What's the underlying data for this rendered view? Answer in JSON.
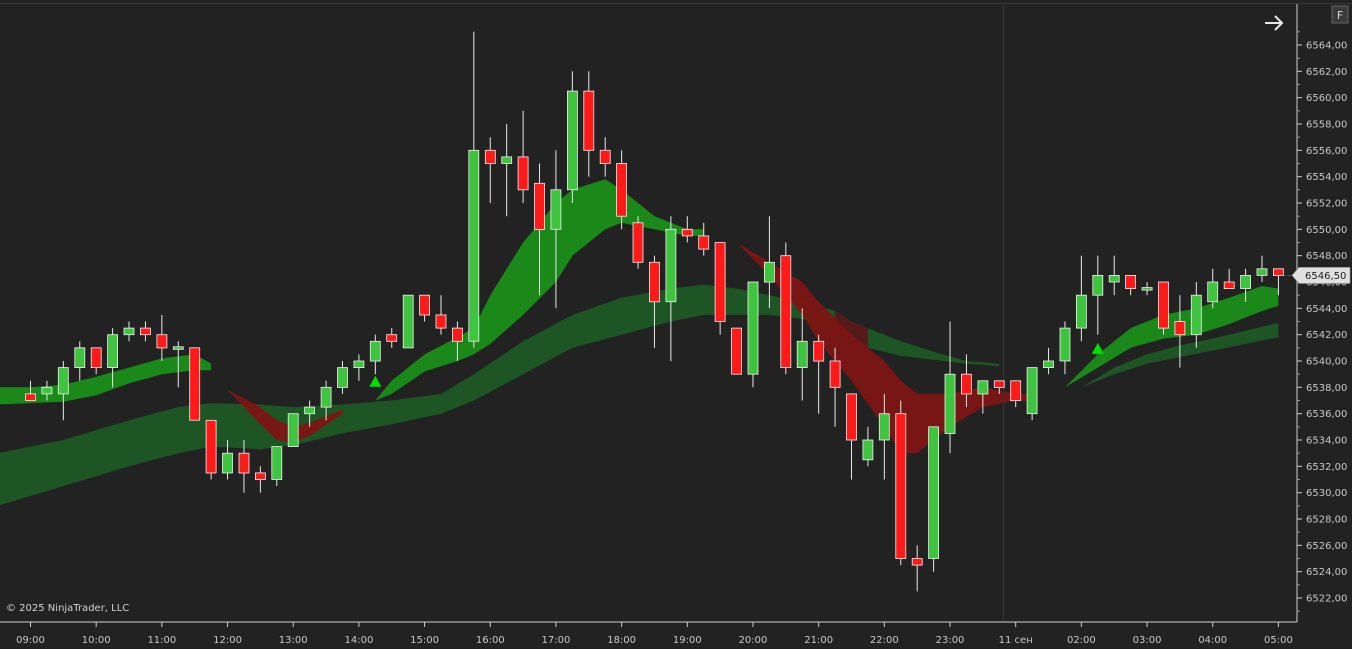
{
  "chart_data": {
    "type": "candlestick",
    "instrument_price_axis": {
      "ylim": [
        6520.5,
        6567
      ],
      "tick_values": [
        6522,
        6524,
        6526,
        6528,
        6530,
        6532,
        6534,
        6536,
        6538,
        6540,
        6542,
        6544,
        6546,
        6548,
        6550,
        6552,
        6554,
        6556,
        6558,
        6560,
        6562,
        6564
      ],
      "tick_labels": [
        "6522,00",
        "6524,00",
        "6526,00",
        "6528,00",
        "6530,00",
        "6532,00",
        "6534,00",
        "6536,00",
        "6538,00",
        "6540,00",
        "6542,00",
        "6544,00",
        "6546,00",
        "6548,00",
        "6550,00",
        "6552,00",
        "6554,00",
        "6556,00",
        "6558,00",
        "6560,00",
        "6562,00",
        "6564,00"
      ]
    },
    "time_axis": {
      "tick_labels": [
        "09:00",
        "10:00",
        "11:00",
        "12:00",
        "13:00",
        "14:00",
        "15:00",
        "16:00",
        "17:00",
        "18:00",
        "19:00",
        "20:00",
        "21:00",
        "22:00",
        "23:00",
        "11 сен",
        "02:00",
        "03:00",
        "04:00",
        "05:00"
      ],
      "tick_bar_index": [
        0,
        4,
        8,
        12,
        16,
        20,
        24,
        28,
        32,
        36,
        40,
        44,
        48,
        52,
        56,
        60,
        64,
        68,
        72,
        76
      ],
      "session_break_index": 60
    },
    "last_price_label": "6546,50",
    "last_price": 6546.5,
    "candles": [
      {
        "o": 6537.5,
        "h": 6538.5,
        "l": 6537,
        "c": 6537
      },
      {
        "o": 6537.5,
        "h": 6538.5,
        "l": 6537,
        "c": 6538
      },
      {
        "o": 6537.5,
        "h": 6540,
        "l": 6535.5,
        "c": 6539.5
      },
      {
        "o": 6539.5,
        "h": 6541.5,
        "l": 6538.5,
        "c": 6541
      },
      {
        "o": 6541,
        "h": 6541,
        "l": 6539,
        "c": 6539.5
      },
      {
        "o": 6539.5,
        "h": 6542.5,
        "l": 6538,
        "c": 6542
      },
      {
        "o": 6542,
        "h": 6543,
        "l": 6541.5,
        "c": 6542.5
      },
      {
        "o": 6542.5,
        "h": 6543,
        "l": 6541.5,
        "c": 6542
      },
      {
        "o": 6542,
        "h": 6543.5,
        "l": 6540,
        "c": 6541
      },
      {
        "o": 6541,
        "h": 6541.5,
        "l": 6538,
        "c": 6541
      },
      {
        "o": 6541,
        "h": 6541,
        "l": 6535.5,
        "c": 6535.5
      },
      {
        "o": 6535.5,
        "h": 6535.5,
        "l": 6531,
        "c": 6531.5
      },
      {
        "o": 6531.5,
        "h": 6534,
        "l": 6531,
        "c": 6533
      },
      {
        "o": 6533,
        "h": 6534,
        "l": 6530,
        "c": 6531.5
      },
      {
        "o": 6531.5,
        "h": 6532,
        "l": 6530,
        "c": 6531
      },
      {
        "o": 6531,
        "h": 6533.5,
        "l": 6530.5,
        "c": 6533.5
      },
      {
        "o": 6533.5,
        "h": 6536,
        "l": 6533.5,
        "c": 6536
      },
      {
        "o": 6536,
        "h": 6537,
        "l": 6535,
        "c": 6536.5
      },
      {
        "o": 6536.5,
        "h": 6538.5,
        "l": 6535.5,
        "c": 6538
      },
      {
        "o": 6538,
        "h": 6540,
        "l": 6537.5,
        "c": 6539.5
      },
      {
        "o": 6539.5,
        "h": 6540.5,
        "l": 6538.5,
        "c": 6540
      },
      {
        "o": 6540,
        "h": 6542,
        "l": 6539,
        "c": 6541.5
      },
      {
        "o": 6542,
        "h": 6542.5,
        "l": 6541,
        "c": 6541.5
      },
      {
        "o": 6541,
        "h": 6545,
        "l": 6541,
        "c": 6545
      },
      {
        "o": 6545,
        "h": 6545,
        "l": 6543,
        "c": 6543.5
      },
      {
        "o": 6543.5,
        "h": 6545,
        "l": 6542,
        "c": 6542.5
      },
      {
        "o": 6542.5,
        "h": 6543,
        "l": 6540,
        "c": 6541.5
      },
      {
        "o": 6541.5,
        "h": 6565,
        "l": 6541,
        "c": 6556
      },
      {
        "o": 6556,
        "h": 6557,
        "l": 6552,
        "c": 6555
      },
      {
        "o": 6555,
        "h": 6558,
        "l": 6551,
        "c": 6555.5
      },
      {
        "o": 6555.5,
        "h": 6559,
        "l": 6552,
        "c": 6553
      },
      {
        "o": 6553.5,
        "h": 6555,
        "l": 6545,
        "c": 6550
      },
      {
        "o": 6550,
        "h": 6556,
        "l": 6544,
        "c": 6553
      },
      {
        "o": 6553,
        "h": 6562,
        "l": 6552,
        "c": 6560.5
      },
      {
        "o": 6560.5,
        "h": 6562,
        "l": 6554,
        "c": 6556
      },
      {
        "o": 6556,
        "h": 6557,
        "l": 6554,
        "c": 6555
      },
      {
        "o": 6555,
        "h": 6556,
        "l": 6550,
        "c": 6551
      },
      {
        "o": 6550.5,
        "h": 6551,
        "l": 6547,
        "c": 6547.5
      },
      {
        "o": 6547.5,
        "h": 6548,
        "l": 6541,
        "c": 6544.5
      },
      {
        "o": 6544.5,
        "h": 6551,
        "l": 6540,
        "c": 6550
      },
      {
        "o": 6550,
        "h": 6551,
        "l": 6549,
        "c": 6549.5
      },
      {
        "o": 6549.5,
        "h": 6550.5,
        "l": 6548,
        "c": 6548.5
      },
      {
        "o": 6549,
        "h": 6549,
        "l": 6542,
        "c": 6543
      },
      {
        "o": 6542.5,
        "h": 6542.5,
        "l": 6539,
        "c": 6539
      },
      {
        "o": 6539,
        "h": 6546,
        "l": 6538,
        "c": 6546
      },
      {
        "o": 6546,
        "h": 6551,
        "l": 6544,
        "c": 6547.5
      },
      {
        "o": 6548,
        "h": 6549,
        "l": 6539,
        "c": 6539.5
      },
      {
        "o": 6539.5,
        "h": 6544,
        "l": 6537,
        "c": 6541.5
      },
      {
        "o": 6541.5,
        "h": 6542,
        "l": 6536,
        "c": 6540
      },
      {
        "o": 6540,
        "h": 6541,
        "l": 6535,
        "c": 6538
      },
      {
        "o": 6537.5,
        "h": 6537.5,
        "l": 6531,
        "c": 6534
      },
      {
        "o": 6532.5,
        "h": 6535,
        "l": 6532,
        "c": 6534
      },
      {
        "o": 6534,
        "h": 6537.5,
        "l": 6531,
        "c": 6536
      },
      {
        "o": 6536,
        "h": 6537,
        "l": 6524.5,
        "c": 6525
      },
      {
        "o": 6525,
        "h": 6526,
        "l": 6522.5,
        "c": 6524.5
      },
      {
        "o": 6525,
        "h": 6535,
        "l": 6524,
        "c": 6535
      },
      {
        "o": 6534.5,
        "h": 6543,
        "l": 6533,
        "c": 6539
      },
      {
        "o": 6539,
        "h": 6540.5,
        "l": 6536.5,
        "c": 6537.5
      },
      {
        "o": 6537.5,
        "h": 6538.5,
        "l": 6536,
        "c": 6538.5
      },
      {
        "o": 6538.5,
        "h": 6538.5,
        "l": 6537.5,
        "c": 6538
      },
      {
        "o": 6538.5,
        "h": 6538.5,
        "l": 6536.5,
        "c": 6537
      },
      {
        "o": 6536,
        "h": 6539.5,
        "l": 6535.5,
        "c": 6539.5
      },
      {
        "o": 6539.5,
        "h": 6541,
        "l": 6539,
        "c": 6540
      },
      {
        "o": 6540,
        "h": 6543,
        "l": 6539,
        "c": 6542.5
      },
      {
        "o": 6542.5,
        "h": 6548,
        "l": 6541.5,
        "c": 6545
      },
      {
        "o": 6545,
        "h": 6548,
        "l": 6542,
        "c": 6546.5
      },
      {
        "o": 6546,
        "h": 6548,
        "l": 6545,
        "c": 6546.5
      },
      {
        "o": 6546.5,
        "h": 6546.5,
        "l": 6545,
        "c": 6545.5
      },
      {
        "o": 6545.5,
        "h": 6546,
        "l": 6545,
        "c": 6545.5
      },
      {
        "o": 6546,
        "h": 6546,
        "l": 6542,
        "c": 6542.5
      },
      {
        "o": 6543,
        "h": 6545,
        "l": 6539.5,
        "c": 6542
      },
      {
        "o": 6542,
        "h": 6546,
        "l": 6541,
        "c": 6545
      },
      {
        "o": 6544.5,
        "h": 6547,
        "l": 6544,
        "c": 6546
      },
      {
        "o": 6546,
        "h": 6547,
        "l": 6545.5,
        "c": 6545.5
      },
      {
        "o": 6545.5,
        "h": 6547,
        "l": 6544.5,
        "c": 6546.5
      },
      {
        "o": 6546.5,
        "h": 6548,
        "l": 6546,
        "c": 6547
      },
      {
        "o": 6547,
        "h": 6547,
        "l": 6545,
        "c": 6546.5
      }
    ],
    "signals": [
      {
        "type": "buy-arrow",
        "bar": 21,
        "price": 6538.5
      },
      {
        "type": "buy-arrow",
        "bar": 65,
        "price": 6541
      }
    ],
    "fast_band": {
      "segments": [
        {
          "color": "green",
          "points": [
            [
              -2,
              6538,
              6536.7
            ],
            [
              0,
              6538,
              6536.8
            ],
            [
              2,
              6538.2,
              6536.9
            ],
            [
              4,
              6538.8,
              6537.4
            ],
            [
              6,
              6539.5,
              6538.3
            ],
            [
              8,
              6540.2,
              6539
            ],
            [
              10,
              6540.5,
              6539.3
            ],
            [
              11,
              6539.8,
              6539.3
            ]
          ]
        },
        {
          "color": "red",
          "points": [
            [
              12,
              6537.8,
              6537.8
            ],
            [
              14,
              6536.5,
              6535.2
            ],
            [
              15,
              6535.5,
              6534
            ],
            [
              16,
              6535,
              6533.8
            ],
            [
              17,
              6535.3,
              6534.3
            ],
            [
              19,
              6536.3,
              6536
            ]
          ]
        },
        {
          "color": "green",
          "points": [
            [
              21,
              6537,
              6537
            ],
            [
              22,
              6538.5,
              6537.5
            ],
            [
              24,
              6540.5,
              6539.2
            ],
            [
              26,
              6541.8,
              6540
            ],
            [
              27,
              6542.5,
              6540.5
            ],
            [
              28,
              6545,
              6541.3
            ],
            [
              30,
              6549,
              6543.5
            ],
            [
              32,
              6552,
              6546
            ],
            [
              33,
              6553,
              6548
            ],
            [
              35,
              6553.8,
              6550
            ],
            [
              36,
              6553,
              6550.5
            ],
            [
              38,
              6551,
              6550
            ],
            [
              40,
              6550,
              6549.5
            ],
            [
              41,
              6550,
              6549.5
            ]
          ]
        },
        {
          "color": "red",
          "points": [
            [
              43,
              6549,
              6549
            ],
            [
              45,
              6547.5,
              6546.5
            ],
            [
              47,
              6546,
              6543.5
            ],
            [
              48,
              6544.5,
              6541.5
            ],
            [
              50,
              6542,
              6538.5
            ],
            [
              52,
              6540,
              6535
            ],
            [
              53,
              6538.5,
              6533
            ],
            [
              54,
              6537.5,
              6533
            ],
            [
              56,
              6537.5,
              6535
            ],
            [
              58,
              6538,
              6536.5
            ],
            [
              60,
              6537.5,
              6537
            ],
            [
              61,
              6537.5,
              6537
            ]
          ]
        },
        {
          "color": "green",
          "points": [
            [
              63,
              6538,
              6538
            ],
            [
              65,
              6540.5,
              6539.5
            ],
            [
              67,
              6542.5,
              6541
            ],
            [
              69,
              6543.5,
              6541.7
            ],
            [
              71,
              6544,
              6542
            ],
            [
              73,
              6544.8,
              6542.8
            ],
            [
              75,
              6545.7,
              6543.8
            ],
            [
              76,
              6545.5,
              6544.2
            ]
          ]
        }
      ]
    },
    "slow_band": {
      "segments": [
        {
          "color": "green",
          "points": [
            [
              -2,
              6533,
              6529
            ],
            [
              2,
              6534,
              6530.5
            ],
            [
              6,
              6535.5,
              6532
            ],
            [
              9,
              6536.5,
              6533
            ],
            [
              11,
              6536.8,
              6533.5
            ],
            [
              14,
              6536.7,
              6533.3
            ],
            [
              16,
              6536.5,
              6533.6
            ],
            [
              19,
              6536.7,
              6534.5
            ],
            [
              22,
              6537,
              6535.2
            ],
            [
              25,
              6537.5,
              6536
            ],
            [
              27,
              6539,
              6537
            ],
            [
              30,
              6541.5,
              6539
            ],
            [
              33,
              6543.5,
              6541
            ],
            [
              36,
              6544.8,
              6542
            ],
            [
              39,
              6545.5,
              6543
            ],
            [
              41,
              6545.8,
              6543.5
            ],
            [
              43,
              6545.5,
              6543.5
            ],
            [
              45,
              6545,
              6543.5
            ],
            [
              47,
              6544.5,
              6543.2
            ],
            [
              49,
              6543.8,
              6542.2
            ]
          ]
        },
        {
          "color": "red",
          "points": [
            [
              49,
              6543.8,
              6542.2
            ],
            [
              50,
              6543,
              6541.5
            ],
            [
              51,
              6542.5,
              6541
            ]
          ]
        },
        {
          "color": "green",
          "points": [
            [
              51,
              6542.5,
              6541
            ],
            [
              53,
              6541.5,
              6540.4
            ],
            [
              55,
              6540.7,
              6540.1
            ],
            [
              57,
              6540,
              6539.8
            ],
            [
              59,
              6539.8,
              6539.6
            ]
          ]
        },
        {
          "color": "green",
          "points": [
            [
              64,
              6538,
              6538
            ],
            [
              66,
              6539.5,
              6539
            ],
            [
              68,
              6540.5,
              6539.8
            ],
            [
              70,
              6541.2,
              6540.3
            ],
            [
              72,
              6541.7,
              6540.8
            ],
            [
              74,
              6542.3,
              6541.3
            ],
            [
              76,
              6542.9,
              6541.8
            ]
          ]
        }
      ]
    },
    "colors": {
      "background": "#222222",
      "candle_up": "#3ec43e",
      "candle_down": "#ff1a1a",
      "wick": "#e8e8e8",
      "fast_green": "#1a8f1a",
      "fast_red": "#7d1515",
      "slow_green": "#1d5a25",
      "slow_red": "#5a1a1a",
      "signal": "#00e000",
      "axis_text": "#c8c8c8",
      "grid_separator": "#3a3a3a"
    }
  },
  "copyright": "© 2025 NinjaTrader, LLC",
  "toolbar": {
    "arrow_icon": "arrow-right-icon",
    "f_button_label": "F"
  }
}
